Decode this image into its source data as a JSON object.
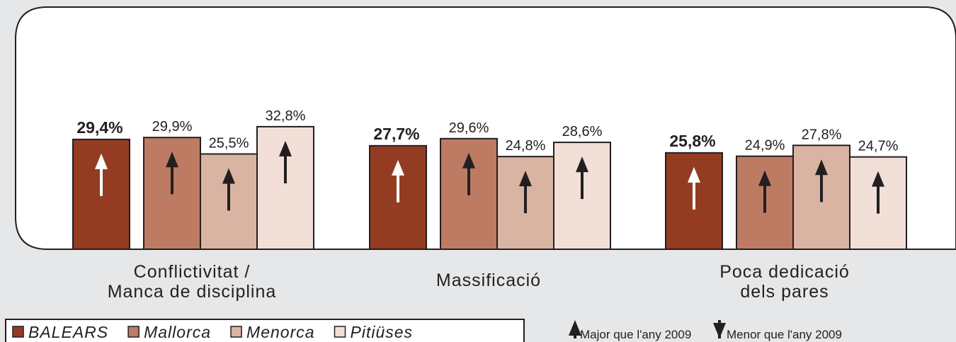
{
  "chart_data": {
    "type": "bar",
    "categories": [
      "Conflictivitat /\nManca de disciplina",
      "Massificació",
      "Poca dedicació\ndels pares"
    ],
    "series": [
      {
        "name": "BALEARS",
        "color": "#943c22",
        "values": [
          29.4,
          27.7,
          25.8
        ],
        "value_labels": [
          "29,4%",
          "27,7%",
          "25,8%"
        ],
        "trend": [
          "up",
          "up",
          "up"
        ]
      },
      {
        "name": "Mallorca",
        "color": "#bd7b64",
        "values": [
          29.9,
          29.6,
          24.9
        ],
        "value_labels": [
          "29,9%",
          "29,6%",
          "24,9%"
        ],
        "trend": [
          "up",
          "up",
          "up"
        ]
      },
      {
        "name": "Menorca",
        "color": "#dab4a2",
        "values": [
          25.5,
          24.8,
          27.8
        ],
        "value_labels": [
          "25,5%",
          "24,8%",
          "27,8%"
        ],
        "trend": [
          "up",
          "up",
          "up"
        ]
      },
      {
        "name": "Pitiüses",
        "color": "#f2e0d8",
        "values": [
          32.8,
          28.6,
          24.7
        ],
        "value_labels": [
          "32,8%",
          "28,6%",
          "24,7%"
        ],
        "trend": [
          "up",
          "up",
          "up"
        ]
      }
    ],
    "ylim": [
      0,
      65
    ],
    "trend_legend": {
      "up": "Major que l'any 2009",
      "down": "Menor que l'any 2009"
    }
  }
}
